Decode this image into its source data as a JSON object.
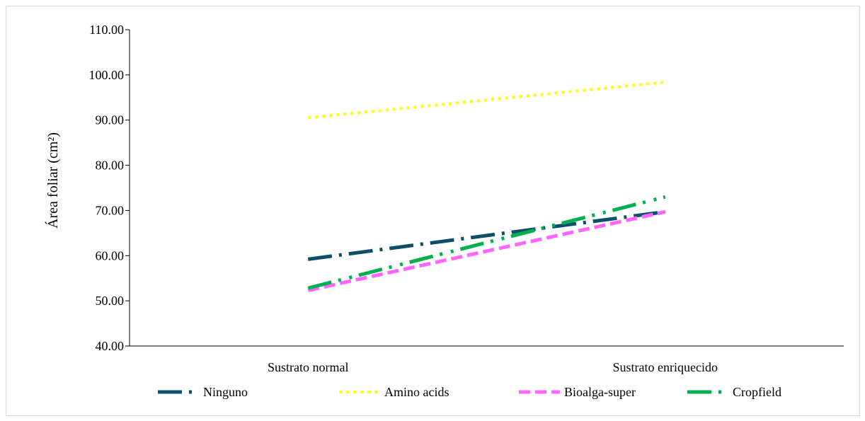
{
  "chart_data": {
    "type": "line",
    "categories": [
      "Sustrato normal",
      "Sustrato enriquecido"
    ],
    "ylabel": "Área foliar (cm²)",
    "ylim": [
      40,
      110
    ],
    "yticks": [
      "40.00",
      "50.00",
      "60.00",
      "70.00",
      "80.00",
      "90.00",
      "100.00",
      "110.00"
    ],
    "grid": false,
    "legend": "bottom",
    "series": [
      {
        "name": "Ninguno",
        "values": [
          59.2,
          69.7
        ],
        "color": "#0d4f6b",
        "style": "long-dash-dot"
      },
      {
        "name": "Amino acids",
        "values": [
          90.5,
          98.4
        ],
        "color": "#ffff00",
        "style": "dotted"
      },
      {
        "name": "Bioalga-super",
        "values": [
          52.3,
          69.7
        ],
        "color": "#ff66ff",
        "style": "dashed"
      },
      {
        "name": "Cropfield",
        "values": [
          52.8,
          73.0
        ],
        "color": "#00b050",
        "style": "long-dash-dot-dot"
      }
    ]
  }
}
